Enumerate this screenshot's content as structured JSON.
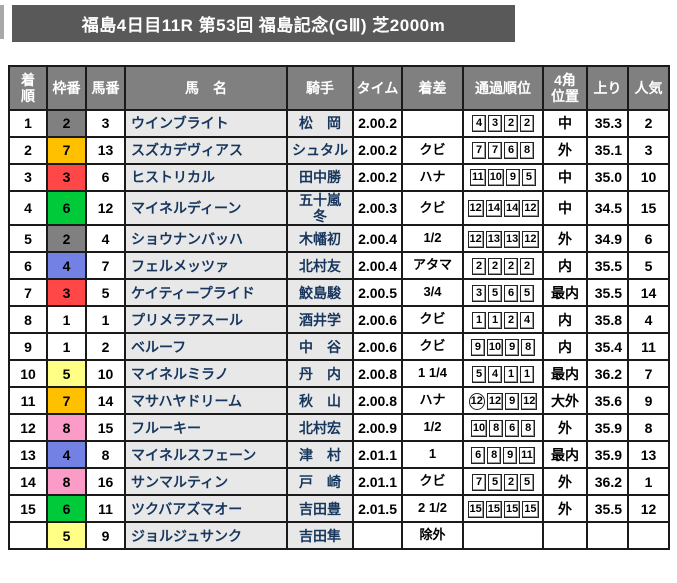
{
  "window": {
    "title": "福島4日目11R  第53回  福島記念(GⅢ)  芝2000m"
  },
  "colors": {
    "title_bar_bg": "#595959",
    "header_bg": "#808080",
    "name_cell_bg": "#e8e8e8",
    "name_text": "#17365d",
    "border": "#1a1a1a"
  },
  "table": {
    "columns": [
      {
        "key": "pos",
        "label": "着\n順"
      },
      {
        "key": "frame",
        "label": "枠番"
      },
      {
        "key": "no",
        "label": "馬番"
      },
      {
        "key": "name",
        "label": "馬　名"
      },
      {
        "key": "jockey",
        "label": "騎手"
      },
      {
        "key": "time",
        "label": "タイム"
      },
      {
        "key": "margin",
        "label": "着差"
      },
      {
        "key": "passing",
        "label": "通過順位"
      },
      {
        "key": "corner",
        "label": "4角\n位置"
      },
      {
        "key": "last3f",
        "label": "上り"
      },
      {
        "key": "pop",
        "label": "人気"
      }
    ],
    "frame_colors": {
      "1": "#ffffff",
      "2": "#808080",
      "3": "#ff4747",
      "4": "#7381e4",
      "5": "#ffff85",
      "6": "#00c93a",
      "7": "#ffc000",
      "8": "#fa9bc8"
    },
    "rows": [
      {
        "pos": "1",
        "frame": "2",
        "no": "3",
        "name": "ウインブライト",
        "jockey": "松　岡",
        "time": "2.00.2",
        "margin": "",
        "passing": [
          "4",
          "3",
          "2",
          "2"
        ],
        "circled": null,
        "corner": "中",
        "last3f": "35.3",
        "pop": "2"
      },
      {
        "pos": "2",
        "frame": "7",
        "no": "13",
        "name": "スズカデヴィアス",
        "jockey": "シュタル",
        "time": "2.00.2",
        "margin": "クビ",
        "passing": [
          "7",
          "7",
          "6",
          "8"
        ],
        "circled": null,
        "corner": "外",
        "last3f": "35.1",
        "pop": "3"
      },
      {
        "pos": "3",
        "frame": "3",
        "no": "6",
        "name": "ヒストリカル",
        "jockey": "田中勝",
        "time": "2.00.2",
        "margin": "ハナ",
        "passing": [
          "11",
          "10",
          "9",
          "5"
        ],
        "circled": null,
        "corner": "中",
        "last3f": "35.0",
        "pop": "10"
      },
      {
        "pos": "4",
        "frame": "6",
        "no": "12",
        "name": "マイネルディーン",
        "jockey": "五十嵐\n冬",
        "time": "2.00.3",
        "margin": "クビ",
        "passing": [
          "12",
          "14",
          "14",
          "12"
        ],
        "circled": null,
        "corner": "中",
        "last3f": "34.5",
        "pop": "15"
      },
      {
        "pos": "5",
        "frame": "2",
        "no": "4",
        "name": "ショウナンバッハ",
        "jockey": "木幡初",
        "time": "2.00.4",
        "margin": "1/2",
        "passing": [
          "12",
          "13",
          "13",
          "12"
        ],
        "circled": null,
        "corner": "外",
        "last3f": "34.9",
        "pop": "6"
      },
      {
        "pos": "6",
        "frame": "4",
        "no": "7",
        "name": "フェルメッツァ",
        "jockey": "北村友",
        "time": "2.00.4",
        "margin": "アタマ",
        "passing": [
          "2",
          "2",
          "2",
          "2"
        ],
        "circled": null,
        "corner": "内",
        "last3f": "35.5",
        "pop": "5"
      },
      {
        "pos": "7",
        "frame": "3",
        "no": "5",
        "name": "ケイティープライド",
        "jockey": "鮫島駿",
        "time": "2.00.5",
        "margin": "3/4",
        "passing": [
          "3",
          "5",
          "6",
          "5"
        ],
        "circled": null,
        "corner": "最内",
        "last3f": "35.5",
        "pop": "14"
      },
      {
        "pos": "8",
        "frame": "1",
        "no": "1",
        "name": "プリメラアスール",
        "jockey": "酒井学",
        "time": "2.00.6",
        "margin": "クビ",
        "passing": [
          "1",
          "1",
          "2",
          "4"
        ],
        "circled": null,
        "corner": "内",
        "last3f": "35.8",
        "pop": "4"
      },
      {
        "pos": "9",
        "frame": "1",
        "no": "2",
        "name": "ベルーフ",
        "jockey": "中　谷",
        "time": "2.00.6",
        "margin": "クビ",
        "passing": [
          "9",
          "10",
          "9",
          "8"
        ],
        "circled": null,
        "corner": "内",
        "last3f": "35.4",
        "pop": "11"
      },
      {
        "pos": "10",
        "frame": "5",
        "no": "10",
        "name": "マイネルミラノ",
        "jockey": "丹　内",
        "time": "2.00.8",
        "margin": "1 1/4",
        "passing": [
          "5",
          "4",
          "1",
          "1"
        ],
        "circled": null,
        "corner": "最内",
        "last3f": "36.2",
        "pop": "7"
      },
      {
        "pos": "11",
        "frame": "7",
        "no": "14",
        "name": "マサハヤドリーム",
        "jockey": "秋　山",
        "time": "2.00.8",
        "margin": "ハナ",
        "passing": [
          "12",
          "12",
          "9",
          "12"
        ],
        "circled": 0,
        "corner": "大外",
        "last3f": "35.6",
        "pop": "9"
      },
      {
        "pos": "12",
        "frame": "8",
        "no": "15",
        "name": "フルーキー",
        "jockey": "北村宏",
        "time": "2.00.9",
        "margin": "1/2",
        "passing": [
          "10",
          "8",
          "6",
          "8"
        ],
        "circled": null,
        "corner": "外",
        "last3f": "35.9",
        "pop": "8"
      },
      {
        "pos": "13",
        "frame": "4",
        "no": "8",
        "name": "マイネルスフェーン",
        "jockey": "津　村",
        "time": "2.01.1",
        "margin": "1",
        "passing": [
          "6",
          "8",
          "9",
          "11"
        ],
        "circled": null,
        "corner": "最内",
        "last3f": "35.9",
        "pop": "13"
      },
      {
        "pos": "14",
        "frame": "8",
        "no": "16",
        "name": "サンマルティン",
        "jockey": "戸　崎",
        "time": "2.01.1",
        "margin": "クビ",
        "passing": [
          "7",
          "5",
          "2",
          "5"
        ],
        "circled": null,
        "corner": "外",
        "last3f": "36.2",
        "pop": "1"
      },
      {
        "pos": "15",
        "frame": "6",
        "no": "11",
        "name": "ツクバアズマオー",
        "jockey": "吉田豊",
        "time": "2.01.5",
        "margin": "2 1/2",
        "passing": [
          "15",
          "15",
          "15",
          "15"
        ],
        "circled": null,
        "corner": "外",
        "last3f": "35.5",
        "pop": "12"
      },
      {
        "pos": "",
        "frame": "5",
        "no": "9",
        "name": "ジョルジュサンク",
        "jockey": "吉田隼",
        "time": "",
        "margin": "除外",
        "passing": [],
        "circled": null,
        "corner": "",
        "last3f": "",
        "pop": ""
      }
    ]
  }
}
